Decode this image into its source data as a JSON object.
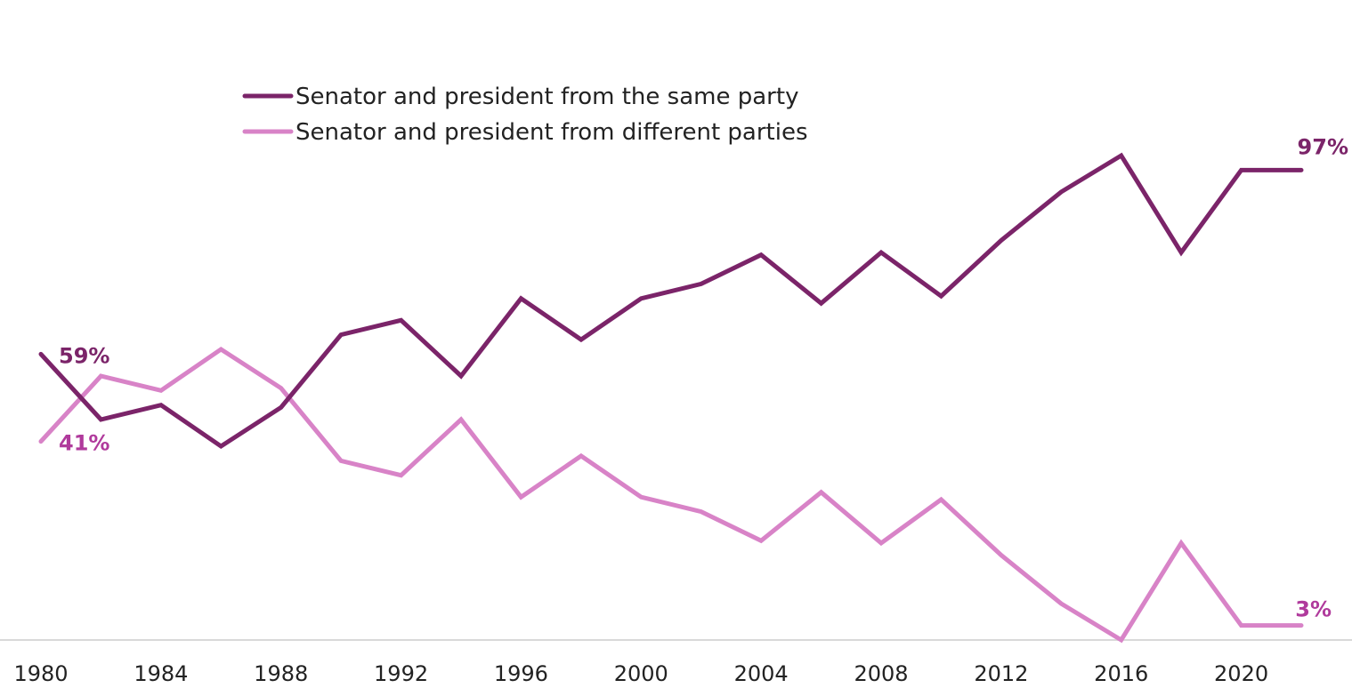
{
  "chart_data": {
    "type": "line",
    "title": "",
    "xlabel": "",
    "ylabel": "",
    "x": [
      1980,
      1982,
      1984,
      1986,
      1988,
      1990,
      1992,
      1994,
      1996,
      1998,
      2000,
      2002,
      2004,
      2006,
      2008,
      2010,
      2012,
      2014,
      2016,
      2018,
      2020,
      2022
    ],
    "xticks": [
      "1980",
      "1984",
      "1988",
      "1992",
      "1996",
      "2000",
      "2004",
      "2008",
      "2012",
      "2016",
      "2020"
    ],
    "ylim": [
      0,
      100
    ],
    "grid": false,
    "legend_position": "top-left",
    "series": [
      {
        "name": "Senator and president from the same party",
        "color": "#7b2469",
        "values": [
          59,
          45.5,
          48.5,
          40,
          48,
          63,
          66,
          54.5,
          70.5,
          62,
          70.5,
          73.5,
          79.5,
          69.5,
          80,
          71,
          82.5,
          92.5,
          100,
          80,
          97,
          97
        ],
        "start_label": "59%",
        "end_label": "97%"
      },
      {
        "name": "Senator and president from different parties",
        "color": "#d883c7",
        "values": [
          41,
          54.5,
          51.5,
          60,
          52,
          37,
          34,
          45.5,
          29.5,
          38,
          29.5,
          26.5,
          20.5,
          30.5,
          20,
          29,
          17.5,
          7.5,
          0,
          20,
          3,
          3
        ],
        "start_label": "41%",
        "end_label": "3%"
      }
    ],
    "label_colors": {
      "same_party": "#7b2469",
      "different_parties": "#b03a9c"
    }
  }
}
